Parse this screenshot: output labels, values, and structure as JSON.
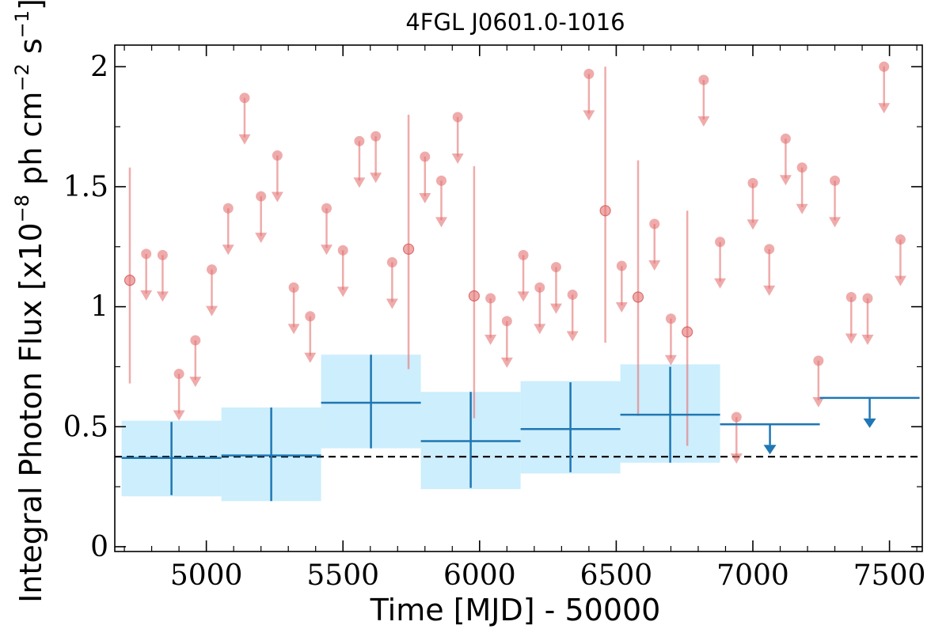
{
  "chart_data": {
    "type": "scatter",
    "title": "4FGL J0601.0-1016",
    "xlabel": "Time [MJD] - 50000",
    "ylabel_main": "Integral Photon Flux [x10",
    "ylabel_exp1": "−8",
    "ylabel_mid": " ph cm",
    "ylabel_exp2": "−2",
    "ylabel_mid2": " s",
    "ylabel_exp3": "−1",
    "ylabel_end": "]",
    "xlim": [
      4665,
      7620
    ],
    "ylim": [
      -0.02,
      2.09
    ],
    "xticks": [
      5000,
      5500,
      6000,
      6500,
      7000,
      7500
    ],
    "yticks": [
      0,
      0.5,
      1,
      1.5,
      2
    ],
    "ytick_labels": [
      "0",
      "0.5",
      "1",
      "1.5",
      "2"
    ],
    "reference_line": 0.375,
    "colors": {
      "fine_series": "#e57373",
      "coarse_series": "#1f77b4",
      "band": "#cdeefc",
      "reference": "#000000"
    },
    "coarse_bins": [
      {
        "x0": 4690,
        "x1": 5055,
        "value": 0.37,
        "lo": 0.21,
        "hi": 0.525,
        "err_lo": 0.215,
        "err_hi": 0.52,
        "upper_limit": false
      },
      {
        "x0": 5055,
        "x1": 5420,
        "value": 0.38,
        "lo": 0.19,
        "hi": 0.58,
        "err_lo": 0.19,
        "err_hi": 0.58,
        "upper_limit": false
      },
      {
        "x0": 5420,
        "x1": 5785,
        "value": 0.6,
        "lo": 0.41,
        "hi": 0.8,
        "err_lo": 0.41,
        "err_hi": 0.8,
        "upper_limit": false
      },
      {
        "x0": 5785,
        "x1": 6150,
        "value": 0.44,
        "lo": 0.24,
        "hi": 0.645,
        "err_lo": 0.245,
        "err_hi": 0.645,
        "upper_limit": false
      },
      {
        "x0": 6150,
        "x1": 6515,
        "value": 0.49,
        "lo": 0.305,
        "hi": 0.69,
        "err_lo": 0.31,
        "err_hi": 0.685,
        "upper_limit": false
      },
      {
        "x0": 6515,
        "x1": 6880,
        "value": 0.55,
        "lo": 0.35,
        "hi": 0.76,
        "err_lo": 0.35,
        "err_hi": 0.75,
        "upper_limit": false
      },
      {
        "x0": 6880,
        "x1": 7245,
        "value": 0.51,
        "upper_limit": true
      },
      {
        "x0": 7245,
        "x1": 7610,
        "value": 0.62,
        "upper_limit": true
      }
    ],
    "fine_points": [
      {
        "x": 4720,
        "y": 1.11,
        "lo": 0.68,
        "hi": 1.58,
        "upper_limit": false
      },
      {
        "x": 4780,
        "y": 1.22,
        "upper_limit": true
      },
      {
        "x": 4840,
        "y": 1.215,
        "upper_limit": true
      },
      {
        "x": 4900,
        "y": 0.72,
        "upper_limit": true
      },
      {
        "x": 4960,
        "y": 0.86,
        "upper_limit": true
      },
      {
        "x": 5020,
        "y": 1.155,
        "upper_limit": true
      },
      {
        "x": 5080,
        "y": 1.41,
        "upper_limit": true
      },
      {
        "x": 5140,
        "y": 1.87,
        "upper_limit": true
      },
      {
        "x": 5200,
        "y": 1.46,
        "upper_limit": true
      },
      {
        "x": 5260,
        "y": 1.63,
        "upper_limit": true
      },
      {
        "x": 5320,
        "y": 1.08,
        "upper_limit": true
      },
      {
        "x": 5380,
        "y": 0.96,
        "upper_limit": true
      },
      {
        "x": 5440,
        "y": 1.41,
        "upper_limit": true
      },
      {
        "x": 5500,
        "y": 1.235,
        "upper_limit": true
      },
      {
        "x": 5560,
        "y": 1.69,
        "upper_limit": true
      },
      {
        "x": 5620,
        "y": 1.71,
        "upper_limit": true
      },
      {
        "x": 5680,
        "y": 1.185,
        "upper_limit": true
      },
      {
        "x": 5740,
        "y": 1.24,
        "lo": 0.74,
        "hi": 1.8,
        "upper_limit": false
      },
      {
        "x": 5800,
        "y": 1.625,
        "upper_limit": true
      },
      {
        "x": 5860,
        "y": 1.525,
        "upper_limit": true
      },
      {
        "x": 5920,
        "y": 1.79,
        "upper_limit": true
      },
      {
        "x": 5980,
        "y": 1.045,
        "lo": 0.535,
        "hi": 1.585,
        "upper_limit": false
      },
      {
        "x": 6040,
        "y": 1.035,
        "upper_limit": true
      },
      {
        "x": 6100,
        "y": 0.94,
        "upper_limit": true
      },
      {
        "x": 6160,
        "y": 1.215,
        "upper_limit": true
      },
      {
        "x": 6220,
        "y": 1.08,
        "upper_limit": true
      },
      {
        "x": 6280,
        "y": 1.165,
        "upper_limit": true
      },
      {
        "x": 6340,
        "y": 1.05,
        "upper_limit": true
      },
      {
        "x": 6400,
        "y": 1.97,
        "upper_limit": true
      },
      {
        "x": 6460,
        "y": 1.4,
        "lo": 0.85,
        "hi": 2.0,
        "upper_limit": false
      },
      {
        "x": 6520,
        "y": 1.17,
        "upper_limit": true
      },
      {
        "x": 6580,
        "y": 1.04,
        "lo": 0.545,
        "hi": 1.61,
        "upper_limit": false
      },
      {
        "x": 6640,
        "y": 1.345,
        "upper_limit": true
      },
      {
        "x": 6700,
        "y": 0.95,
        "upper_limit": true
      },
      {
        "x": 6760,
        "y": 0.895,
        "lo": 0.42,
        "hi": 1.4,
        "upper_limit": false
      },
      {
        "x": 6820,
        "y": 1.945,
        "upper_limit": true
      },
      {
        "x": 6880,
        "y": 1.27,
        "upper_limit": true
      },
      {
        "x": 6940,
        "y": 0.54,
        "upper_limit": true
      },
      {
        "x": 7000,
        "y": 1.515,
        "upper_limit": true
      },
      {
        "x": 7060,
        "y": 1.24,
        "upper_limit": true
      },
      {
        "x": 7120,
        "y": 1.7,
        "upper_limit": true
      },
      {
        "x": 7180,
        "y": 1.58,
        "upper_limit": true
      },
      {
        "x": 7240,
        "y": 0.775,
        "upper_limit": true
      },
      {
        "x": 7300,
        "y": 1.525,
        "upper_limit": true
      },
      {
        "x": 7360,
        "y": 1.04,
        "upper_limit": true
      },
      {
        "x": 7420,
        "y": 1.035,
        "upper_limit": true
      },
      {
        "x": 7480,
        "y": 2.0,
        "upper_limit": true
      },
      {
        "x": 7540,
        "y": 1.28,
        "upper_limit": true
      }
    ]
  }
}
